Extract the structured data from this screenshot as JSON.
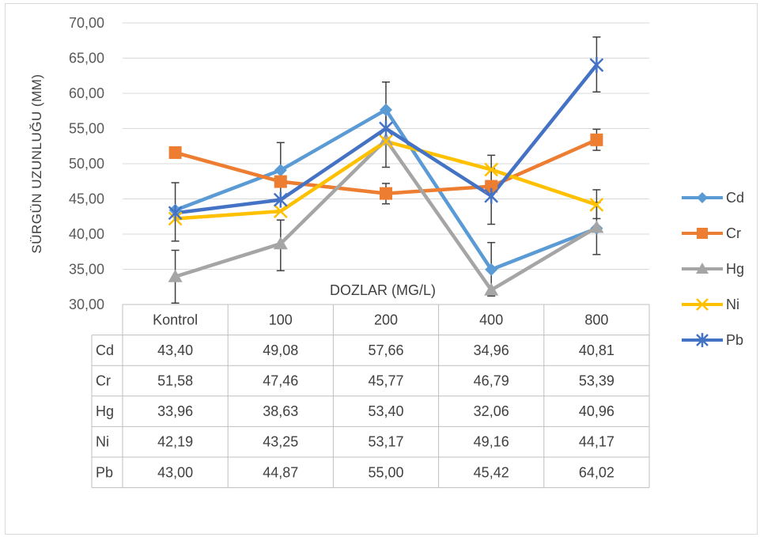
{
  "chart_data": {
    "type": "line",
    "ylabel": "SÜRGÜN UZUNLUĞU (MM)",
    "xlabel": "DOZLAR (MG/L)",
    "categories": [
      "Kontrol",
      "100",
      "200",
      "400",
      "800"
    ],
    "ylim": [
      30,
      70
    ],
    "ytick_step": 5,
    "yticks": [
      "30,00",
      "35,00",
      "40,00",
      "45,00",
      "50,00",
      "55,00",
      "60,00",
      "65,00",
      "70,00"
    ],
    "grid": true,
    "legend_position": "right",
    "series": [
      {
        "name": "Cd",
        "color": "#5B9BD5",
        "marker": "diamond",
        "values": [
          43.4,
          49.08,
          57.66,
          34.96,
          40.81
        ],
        "labels": [
          "43,40",
          "49,08",
          "57,66",
          "34,96",
          "40,81"
        ]
      },
      {
        "name": "Cr",
        "color": "#ED7D31",
        "marker": "square",
        "values": [
          51.58,
          47.46,
          45.77,
          46.79,
          53.39
        ],
        "labels": [
          "51,58",
          "47,46",
          "45,77",
          "46,79",
          "53,39"
        ]
      },
      {
        "name": "Hg",
        "color": "#A5A5A5",
        "marker": "triangle",
        "values": [
          33.96,
          38.63,
          53.4,
          32.06,
          40.96
        ],
        "labels": [
          "33,96",
          "38,63",
          "53,40",
          "32,06",
          "40,96"
        ]
      },
      {
        "name": "Ni",
        "color": "#FFC000",
        "marker": "x",
        "values": [
          42.19,
          43.25,
          53.17,
          49.16,
          44.17
        ],
        "labels": [
          "42,19",
          "43,25",
          "53,17",
          "49,16",
          "44,17"
        ]
      },
      {
        "name": "Pb",
        "color": "#4472C4",
        "marker": "star",
        "values": [
          43.0,
          44.87,
          55.0,
          45.42,
          64.02
        ],
        "labels": [
          "43,00",
          "44,87",
          "55,00",
          "45,42",
          "64,02"
        ]
      }
    ],
    "error_bars": [
      {
        "series": "Pb",
        "point": 0,
        "low": 39.0,
        "high": 47.3
      },
      {
        "series": "Hg",
        "point": 0,
        "low": 30.2,
        "high": 37.7
      },
      {
        "series": "Cd",
        "point": 1,
        "low": 45.0,
        "high": 53.0
      },
      {
        "series": "Hg",
        "point": 1,
        "low": 34.8,
        "high": 42.0
      },
      {
        "series": "Cd",
        "point": 2,
        "low": 53.6,
        "high": 61.6
      },
      {
        "series": "Hg",
        "point": 2,
        "low": 49.5,
        "high": 57.2
      },
      {
        "series": "Cr",
        "point": 2,
        "low": 44.3,
        "high": 47.2
      },
      {
        "series": "Ni",
        "point": 3,
        "low": 47.3,
        "high": 51.2
      },
      {
        "series": "Pb",
        "point": 3,
        "low": 41.4,
        "high": 49.3
      },
      {
        "series": "Cd",
        "point": 3,
        "low": 31.2,
        "high": 38.8
      },
      {
        "series": "Pb",
        "point": 4,
        "low": 60.2,
        "high": 68.0
      },
      {
        "series": "Cr",
        "point": 4,
        "low": 51.9,
        "high": 54.9
      },
      {
        "series": "Ni",
        "point": 4,
        "low": 42.2,
        "high": 46.3
      },
      {
        "series": "Cd",
        "point": 4,
        "low": 37.1,
        "high": 44.5
      }
    ]
  }
}
